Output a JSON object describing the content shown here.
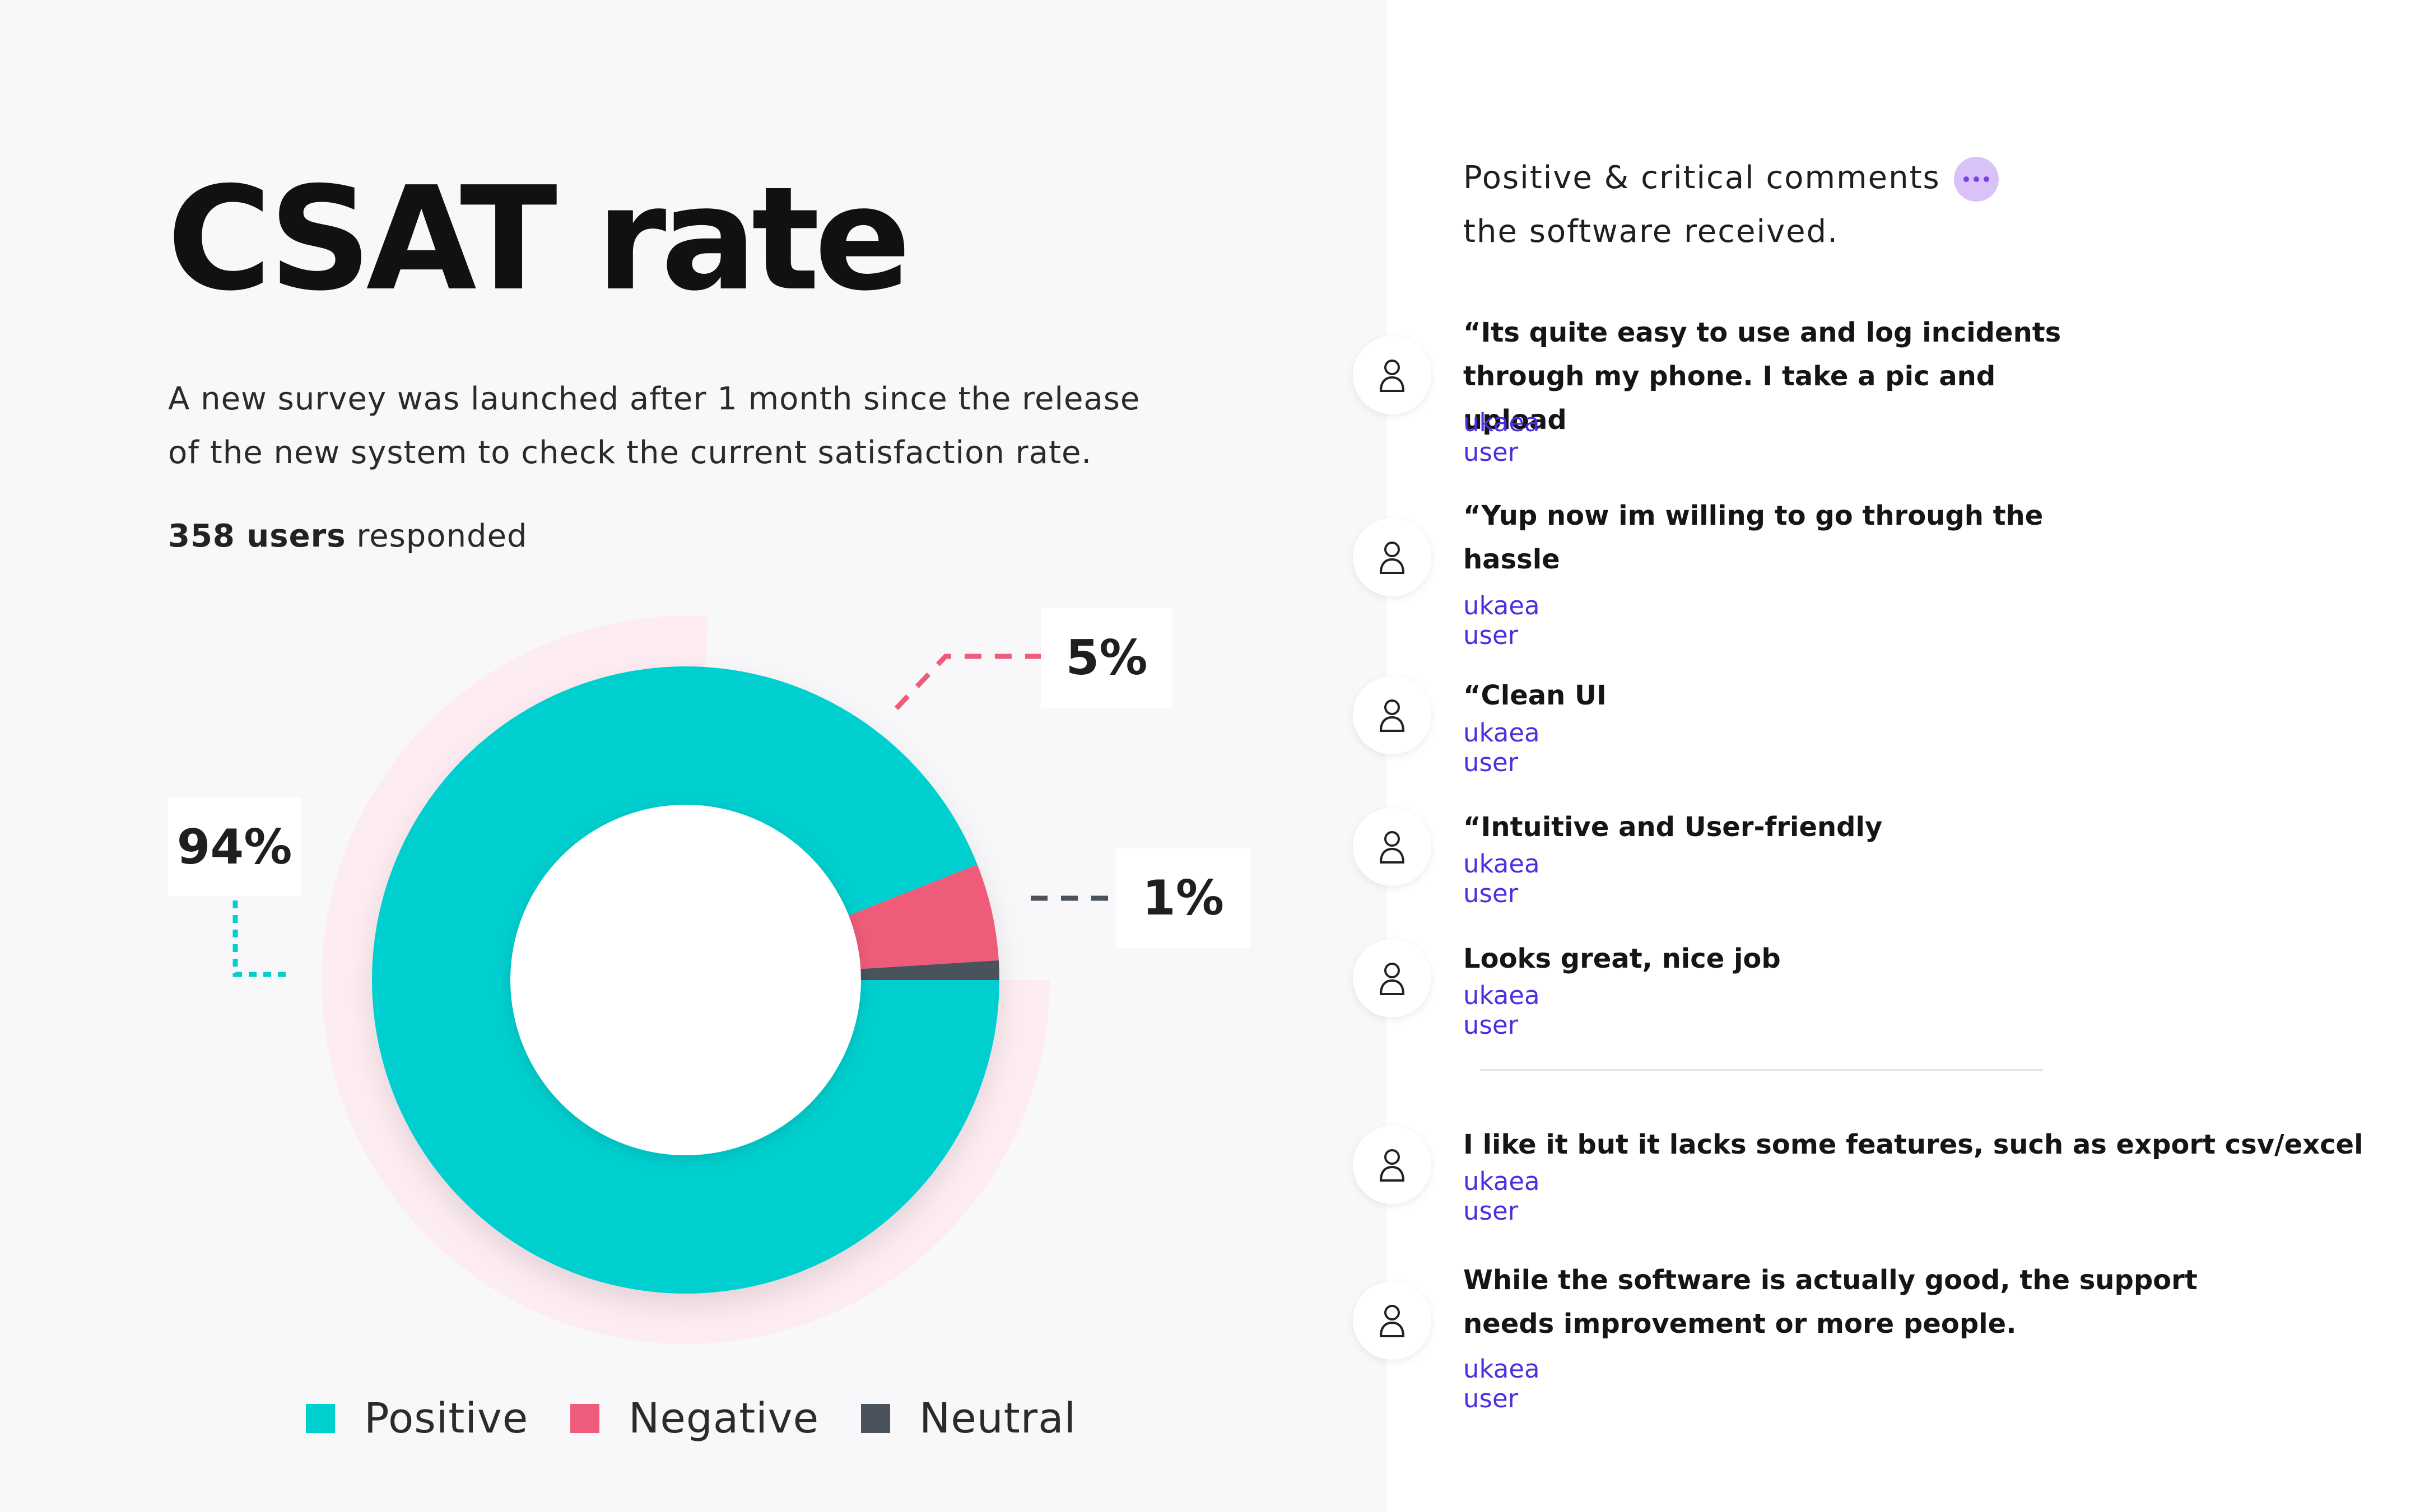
{
  "page": {
    "title": "CSAT rate",
    "description": "A new survey was launched after 1 month since the release of the new system to check the current satisfaction rate.",
    "respondents_bold": "358 users",
    "respondents_rest": " responded"
  },
  "chart_data": {
    "type": "pie",
    "style": "donut",
    "categories": [
      "Positive",
      "Negative",
      "Neutral"
    ],
    "values": [
      94,
      5,
      1
    ],
    "value_labels": [
      "94%",
      "5%",
      "1%"
    ],
    "colors": [
      "#00cfcf",
      "#ef5b7a",
      "#4a525c"
    ],
    "legend_position": "bottom",
    "legend": [
      "Positive",
      "Negative",
      "Neutral"
    ]
  },
  "comments": {
    "header": "Positive & critical comments the software received.",
    "chat_icon": "chat-bubble-dots-icon",
    "avatar_icon": "user-icon",
    "author_color": "#4b2fe0",
    "items": [
      {
        "quote": "“Its quite easy to use and log incidents through my phone. I take a pic and upload",
        "author": "ukaea user"
      },
      {
        "quote": "“Yup now im willing to go through the hassle",
        "author": "ukaea user"
      },
      {
        "quote": "“Clean UI",
        "author": "ukaea user"
      },
      {
        "quote": "“Intuitive and User-friendly",
        "author": "ukaea user"
      },
      {
        "quote": "Looks great, nice job",
        "author": "ukaea user"
      },
      {
        "quote": "I like it but it lacks some features, such as export csv/excel",
        "author": "ukaea user"
      },
      {
        "quote": "While the software is actually good, the support needs improvement or more people.",
        "author": "ukaea user"
      }
    ]
  }
}
